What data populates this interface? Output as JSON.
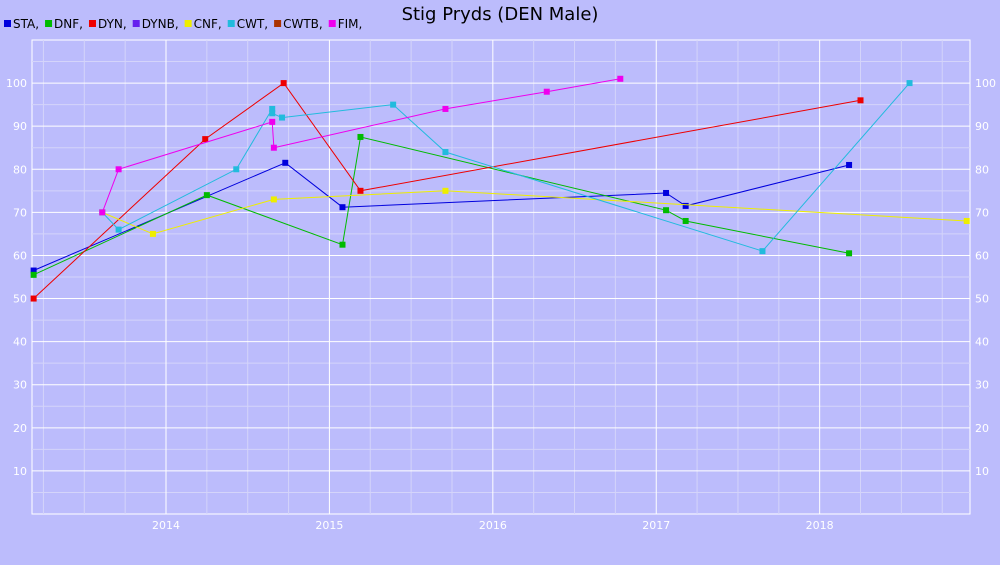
{
  "chart_data": {
    "type": "line",
    "title": "Stig Pryds (DEN Male)",
    "xlabel": "",
    "ylabel": "",
    "xlim": [
      2013.18,
      2018.92
    ],
    "ylim": [
      0,
      110
    ],
    "x_ticks": [
      2014,
      2015,
      2016,
      2017,
      2018
    ],
    "y_ticks": [
      10,
      20,
      30,
      40,
      50,
      60,
      70,
      80,
      90,
      100
    ],
    "grid": true,
    "legend_position": "top-left",
    "legend": [
      {
        "label": "STA,",
        "color": "#0000dd"
      },
      {
        "label": "DNF,",
        "color": "#00bb00"
      },
      {
        "label": "DYN,",
        "color": "#ee0000"
      },
      {
        "label": "DYNB,",
        "color": "#6622ee"
      },
      {
        "label": "CNF,",
        "color": "#eeee00"
      },
      {
        "label": "CWT,",
        "color": "#22bbdd"
      },
      {
        "label": "CWTB,",
        "color": "#aa3300"
      },
      {
        "label": "FIM,",
        "color": "#ee00ee"
      }
    ],
    "series": [
      {
        "name": "STA",
        "color": "#0000dd",
        "points": [
          [
            2013.19,
            56.5
          ],
          [
            2014.73,
            81.5
          ],
          [
            2015.08,
            71.2
          ],
          [
            2017.06,
            74.5
          ],
          [
            2017.18,
            71.5
          ],
          [
            2018.18,
            81
          ]
        ]
      },
      {
        "name": "DNF",
        "color": "#00bb00",
        "points": [
          [
            2013.19,
            55.5
          ],
          [
            2014.25,
            74
          ],
          [
            2015.08,
            62.5
          ],
          [
            2015.19,
            87.5
          ],
          [
            2017.06,
            70.5
          ],
          [
            2017.18,
            68
          ],
          [
            2018.18,
            60.5
          ]
        ]
      },
      {
        "name": "DYN",
        "color": "#ee0000",
        "points": [
          [
            2013.19,
            50
          ],
          [
            2014.24,
            87
          ],
          [
            2014.72,
            100
          ],
          [
            2015.19,
            75
          ],
          [
            2018.25,
            96
          ]
        ]
      },
      {
        "name": "CNF",
        "color": "#eeee00",
        "points": [
          [
            2013.61,
            70
          ],
          [
            2013.92,
            65
          ],
          [
            2014.66,
            73
          ],
          [
            2015.71,
            75
          ],
          [
            2018.9,
            68
          ]
        ]
      },
      {
        "name": "CWT",
        "color": "#22bbdd",
        "points": [
          [
            2013.61,
            70
          ],
          [
            2013.71,
            66
          ],
          [
            2014.43,
            80
          ],
          [
            2014.65,
            94
          ],
          [
            2014.65,
            93
          ],
          [
            2014.71,
            92
          ],
          [
            2015.39,
            95
          ],
          [
            2015.71,
            84
          ],
          [
            2017.65,
            61
          ],
          [
            2018.55,
            100
          ]
        ]
      },
      {
        "name": "FIM",
        "color": "#ee00ee",
        "points": [
          [
            2013.61,
            70
          ],
          [
            2013.71,
            80
          ],
          [
            2014.65,
            91
          ],
          [
            2014.66,
            85
          ],
          [
            2015.71,
            94
          ],
          [
            2016.33,
            98
          ],
          [
            2016.78,
            101
          ]
        ]
      }
    ]
  }
}
